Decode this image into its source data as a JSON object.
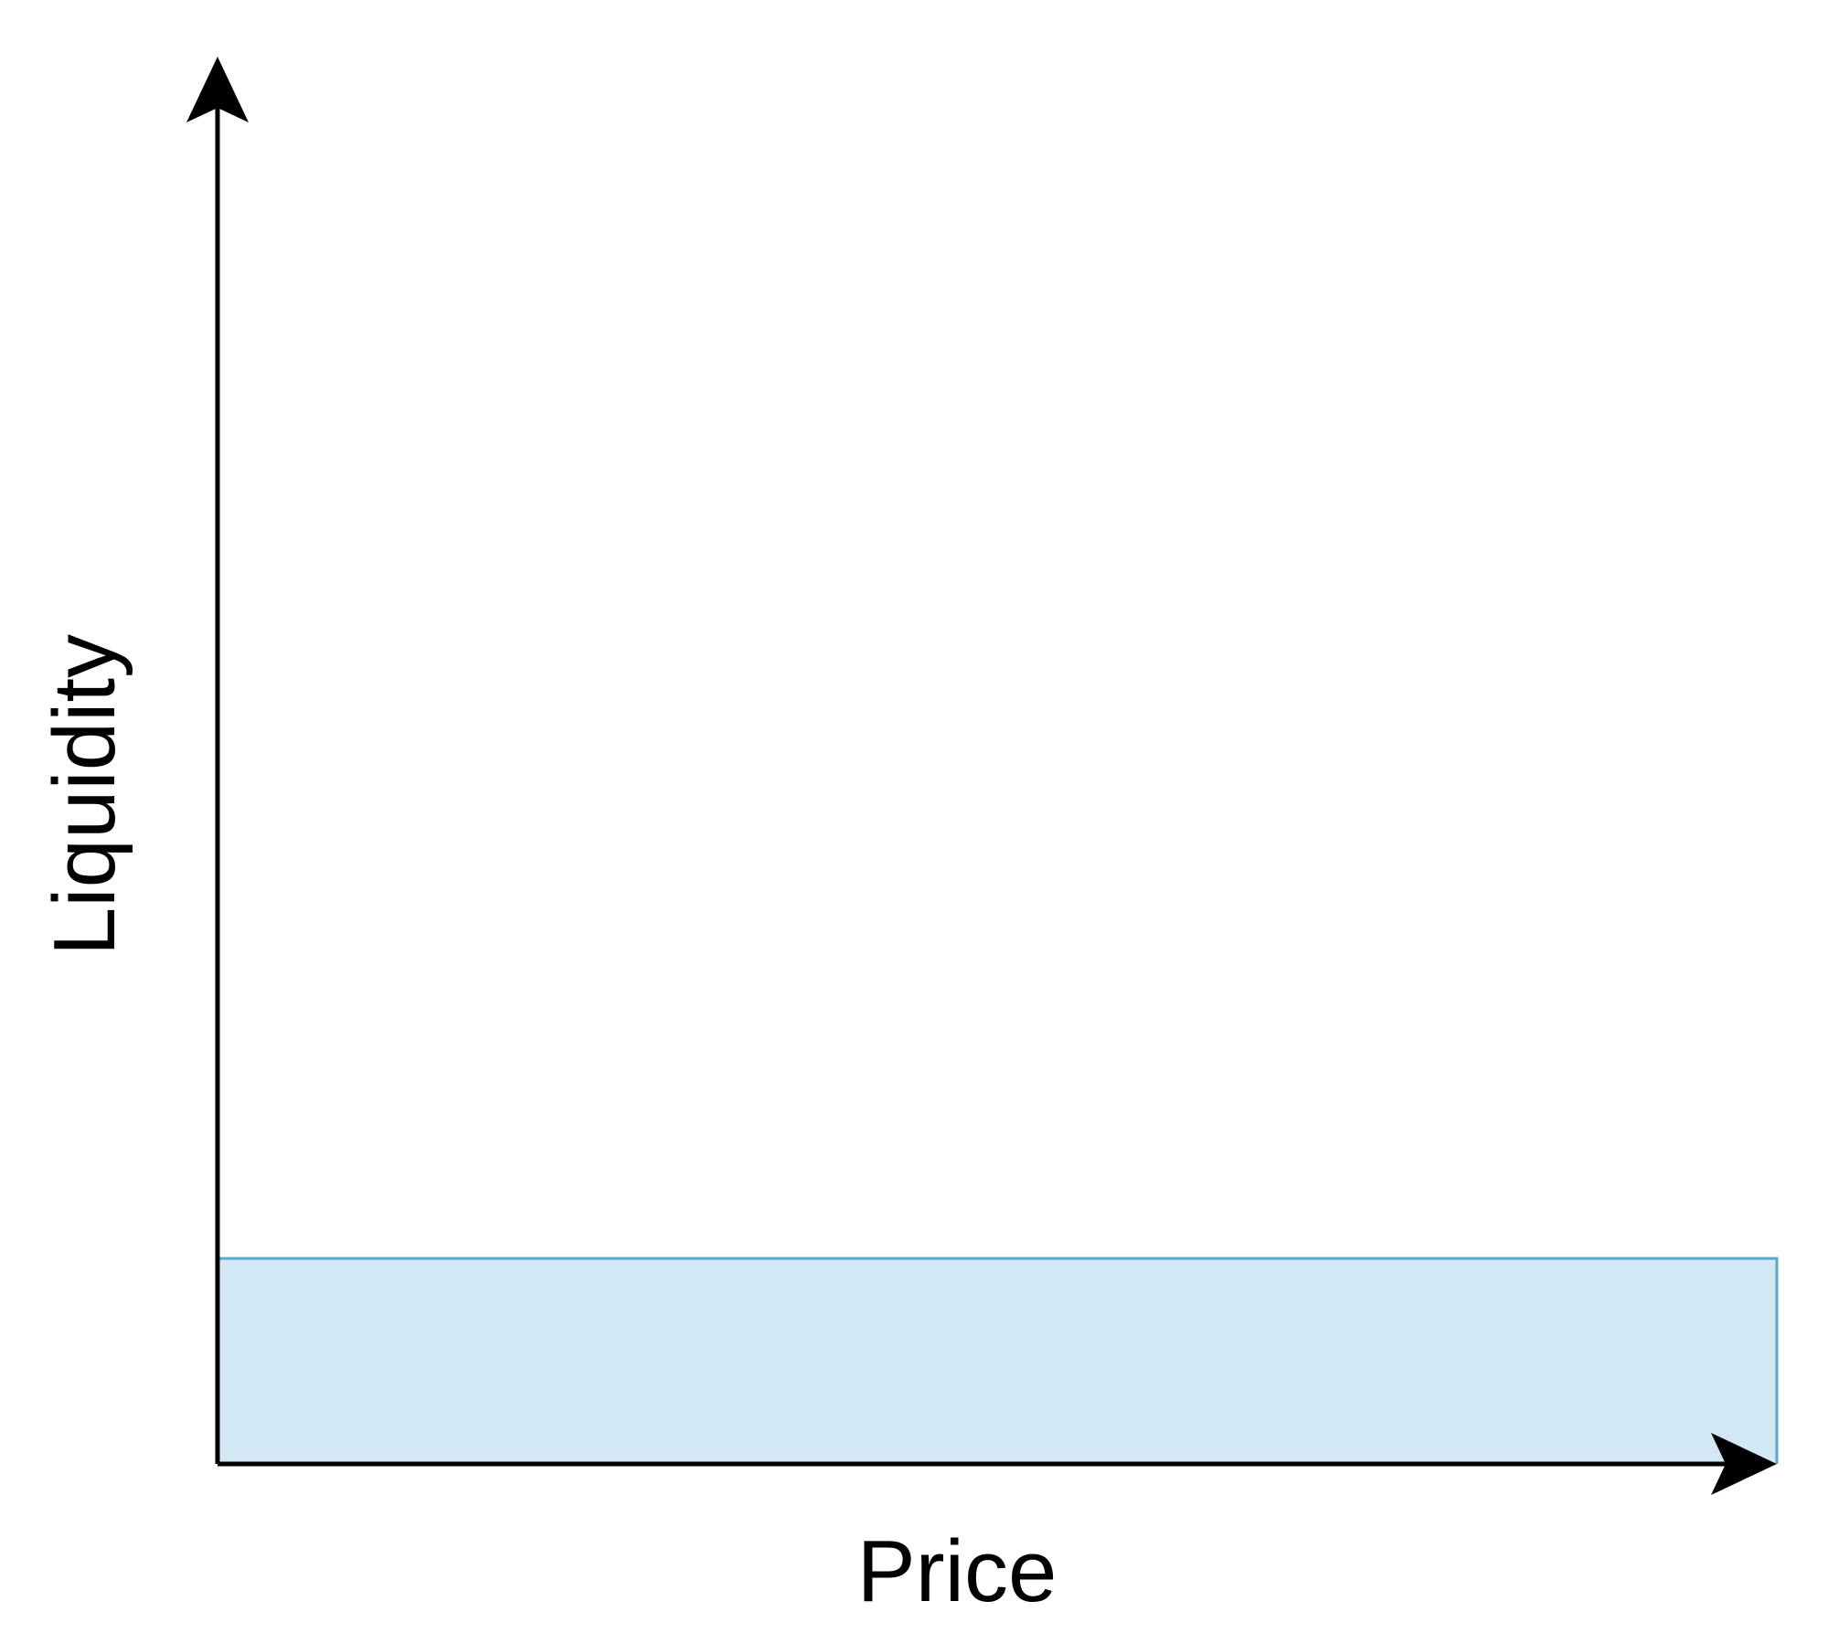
{
  "chart_data": {
    "type": "area",
    "title": "",
    "xlabel": "Price",
    "ylabel": "Liquidity",
    "x_ticks_shown": false,
    "y_ticks_shown": false,
    "grid": false,
    "legend": "none",
    "series": [
      {
        "x": [
          0,
          1
        ],
        "y": [
          0.146,
          0.146
        ]
      }
    ],
    "xlim": [
      0,
      1
    ],
    "ylim": [
      0,
      1
    ],
    "colors": {
      "fill": "#d2e8f5",
      "stroke": "#5aa7cb",
      "axis": "#000000"
    }
  }
}
